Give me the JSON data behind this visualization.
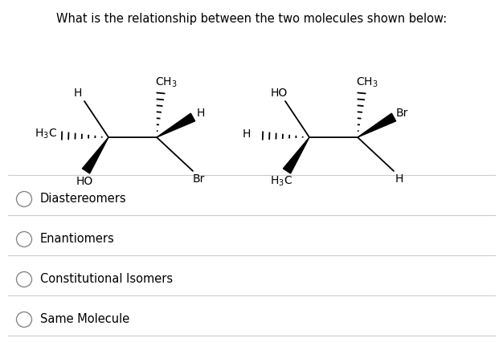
{
  "title": "What is the relationship between the two molecules shown below:",
  "title_fontsize": 10.5,
  "bg_color": "#ffffff",
  "text_color": "#000000",
  "options": [
    "Diastereomers",
    "Enantiomers",
    "Constitutional Isomers",
    "Same Molecule"
  ],
  "option_fontsize": 10.5,
  "figsize": [
    6.26,
    4.26
  ],
  "dpi": 100
}
